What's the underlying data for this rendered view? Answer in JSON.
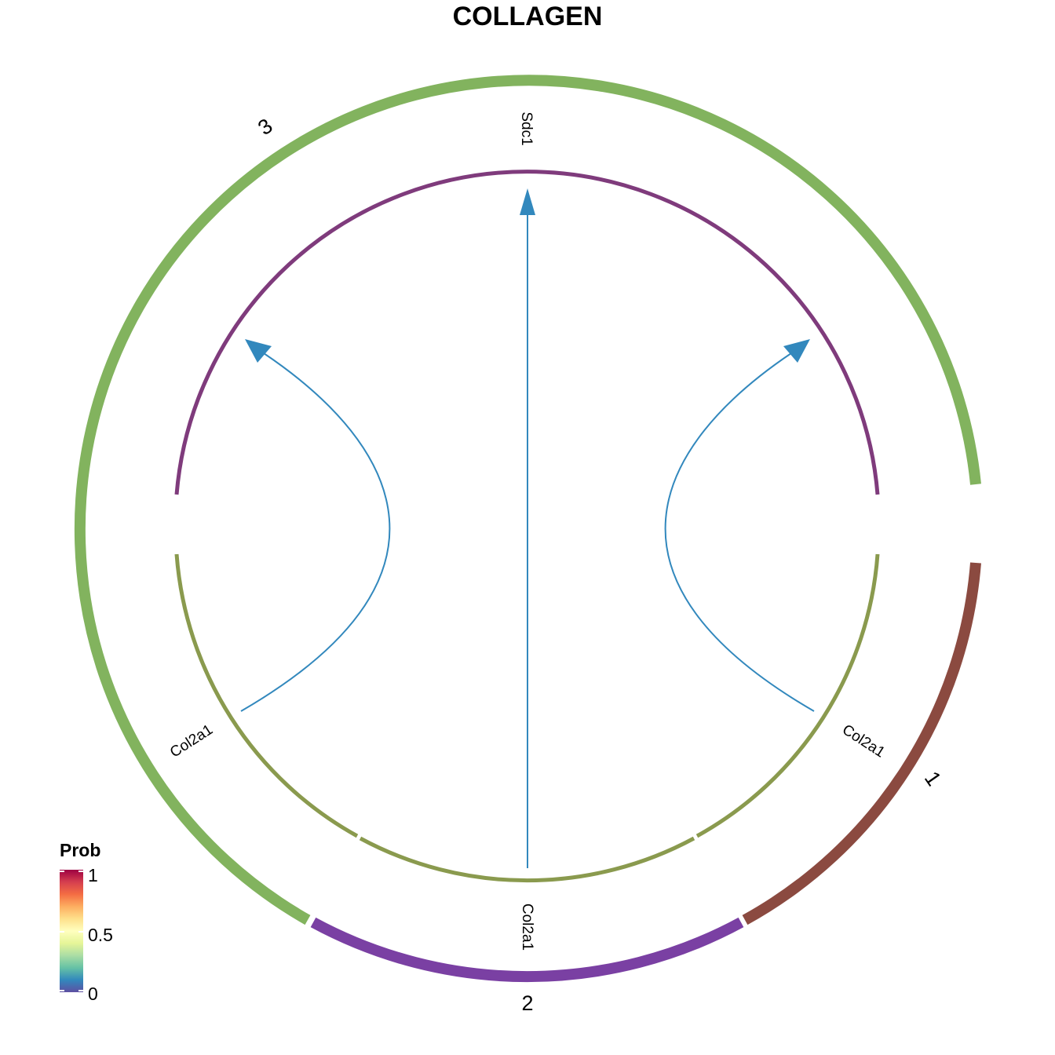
{
  "title": "COLLAGEN",
  "groups": [
    {
      "name": "1",
      "color": "#8B4A40"
    },
    {
      "name": "2",
      "color": "#7A40A3"
    },
    {
      "name": "3",
      "color": "#82B35E"
    }
  ],
  "genes": [
    {
      "name": "Sdc1",
      "role": "receptor",
      "group": "3",
      "color": "#7F3B7C"
    },
    {
      "name": "Col2a1",
      "role": "ligand",
      "group": "1",
      "color": "#8A9A4E"
    },
    {
      "name": "Col2a1",
      "role": "ligand",
      "group": "2",
      "color": "#8A9A4E"
    },
    {
      "name": "Col2a1",
      "role": "ligand",
      "group": "3",
      "color": "#8A9A4E"
    }
  ],
  "links": [
    {
      "from": "1:Col2a1",
      "to": "3:Sdc1",
      "color": "#3288BD"
    },
    {
      "from": "2:Col2a1",
      "to": "3:Sdc1",
      "color": "#3288BD"
    },
    {
      "from": "3:Col2a1",
      "to": "3:Sdc1",
      "color": "#3288BD"
    }
  ],
  "legend": {
    "title": "Prob",
    "ticks": [
      "1",
      "0.5",
      "0"
    ],
    "colors": [
      "#5E4FA2",
      "#3288BD",
      "#66C2A5",
      "#ABDDA4",
      "#E6F598",
      "#FFFFBF",
      "#FEE08B",
      "#FDAE61",
      "#F46D43",
      "#D53E4F",
      "#9E0142"
    ]
  }
}
